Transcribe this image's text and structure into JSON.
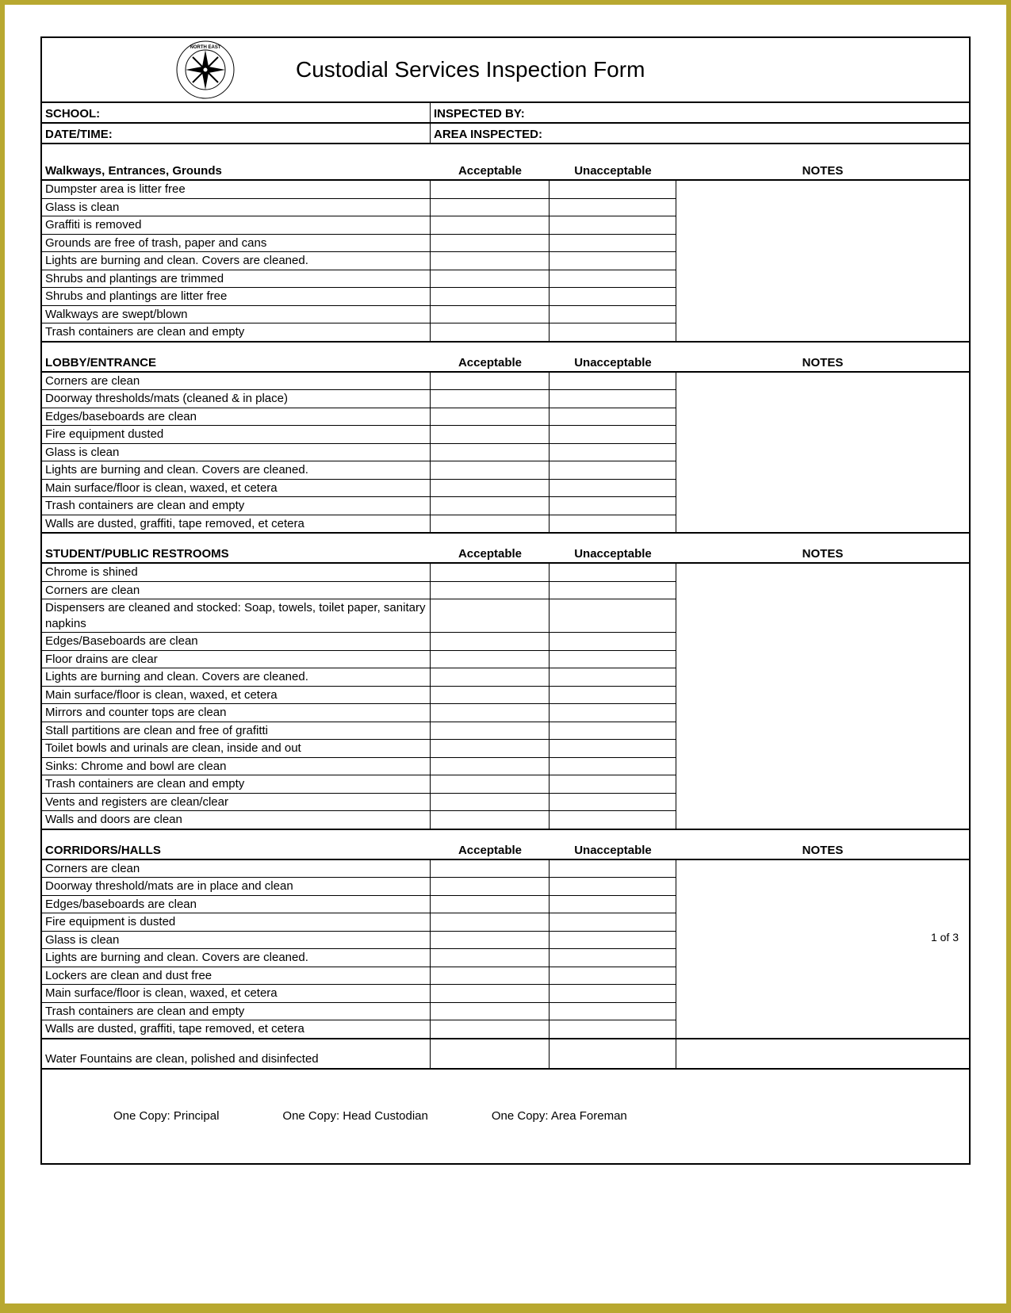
{
  "title": "Custodial Services Inspection Form",
  "logo": {
    "top_text": "NORTH EAST",
    "bottom_text": "INDEPENDENT SCHOOL DISTRICT"
  },
  "info": {
    "school_label": "SCHOOL:",
    "inspected_by_label": "INSPECTED BY:",
    "datetime_label": "DATE/TIME:",
    "area_inspected_label": "AREA INSPECTED:"
  },
  "columns": {
    "acceptable": "Acceptable",
    "unacceptable": "Unacceptable",
    "notes": "NOTES"
  },
  "sections": [
    {
      "title": "Walkways, Entrances, Grounds",
      "items": [
        "Dumpster area is litter free",
        "Glass is clean",
        "Graffiti is removed",
        "Grounds are free of trash, paper and cans",
        "Lights are burning and clean. Covers are cleaned.",
        "Shrubs and plantings are trimmed",
        "Shrubs and plantings are litter free",
        "Walkways are swept/blown",
        "Trash containers are clean and empty"
      ]
    },
    {
      "title": "LOBBY/ENTRANCE",
      "items": [
        "Corners are clean",
        "Doorway thresholds/mats (cleaned & in place)",
        "Edges/baseboards are clean",
        "Fire equipment dusted",
        "Glass is clean",
        "Lights are burning and clean. Covers are cleaned.",
        "Main surface/floor is clean, waxed, et cetera",
        "Trash containers are clean and empty",
        "Walls are dusted, graffiti, tape removed, et cetera"
      ]
    },
    {
      "title": "STUDENT/PUBLIC RESTROOMS",
      "items": [
        "Chrome is shined",
        "Corners are clean",
        "Dispensers are cleaned and stocked: Soap, towels, toilet paper, sanitary napkins",
        "Edges/Baseboards are clean",
        "Floor drains are clear",
        "Lights are burning and clean. Covers are cleaned.",
        "Main surface/floor is clean, waxed, et cetera",
        "Mirrors and counter tops are clean",
        "Stall partitions are clean and free of grafitti",
        "Toilet bowls and urinals are clean, inside and out",
        "Sinks: Chrome and bowl are clean",
        "Trash containers are clean and empty",
        "Vents and registers are clean/clear",
        "Walls and doors are clean"
      ]
    },
    {
      "title": "CORRIDORS/HALLS",
      "items": [
        "Corners are clean",
        "Doorway threshold/mats are in place and clean",
        "Edges/baseboards are clean",
        "Fire equipment is dusted",
        "Glass is clean",
        "Lights are burning and clean. Covers are cleaned.",
        "Lockers are clean and dust free",
        "Main surface/floor is clean, waxed, et cetera",
        "Trash containers are clean and empty",
        "Walls are dusted, graffiti, tape removed, et cetera"
      ]
    }
  ],
  "water_fountains": "Water Fountains are clean, polished and disinfected",
  "footer": {
    "copy1": "One Copy: Principal",
    "copy2": "One Copy:  Head Custodian",
    "copy3": "One Copy: Area Foreman"
  },
  "page_number": "1 of 3",
  "colors": {
    "border_outer": "#b8a830",
    "page_bg": "#ffffff",
    "line": "#000000"
  }
}
